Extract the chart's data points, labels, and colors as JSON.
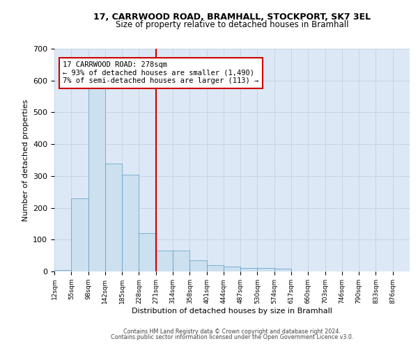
{
  "title_line1": "17, CARRWOOD ROAD, BRAMHALL, STOCKPORT, SK7 3EL",
  "title_line2": "Size of property relative to detached houses in Bramhall",
  "xlabel": "Distribution of detached houses by size in Bramhall",
  "ylabel": "Number of detached properties",
  "bin_labels": [
    "12sqm",
    "55sqm",
    "98sqm",
    "142sqm",
    "185sqm",
    "228sqm",
    "271sqm",
    "314sqm",
    "358sqm",
    "401sqm",
    "444sqm",
    "487sqm",
    "530sqm",
    "574sqm",
    "617sqm",
    "660sqm",
    "703sqm",
    "746sqm",
    "790sqm",
    "833sqm",
    "876sqm"
  ],
  "bar_heights": [
    5,
    230,
    620,
    340,
    305,
    120,
    65,
    65,
    35,
    20,
    15,
    10,
    10,
    8,
    0,
    0,
    0,
    0,
    0,
    0,
    0
  ],
  "bar_color": "#cce0f0",
  "bar_edge_color": "#5b9cc4",
  "vline_x": 6,
  "vline_color": "#cc0000",
  "annotation_text": "17 CARRWOOD ROAD: 278sqm\n← 93% of detached houses are smaller (1,490)\n7% of semi-detached houses are larger (113) →",
  "annotation_box_color": "#ffffff",
  "annotation_box_edge": "#cc0000",
  "ylim": [
    0,
    700
  ],
  "yticks": [
    0,
    100,
    200,
    300,
    400,
    500,
    600,
    700
  ],
  "grid_color": "#c8d4e0",
  "background_color": "#dce8f5",
  "footer_line1": "Contains HM Land Registry data © Crown copyright and database right 2024.",
  "footer_line2": "Contains public sector information licensed under the Open Government Licence v3.0.",
  "n_bins": 21
}
